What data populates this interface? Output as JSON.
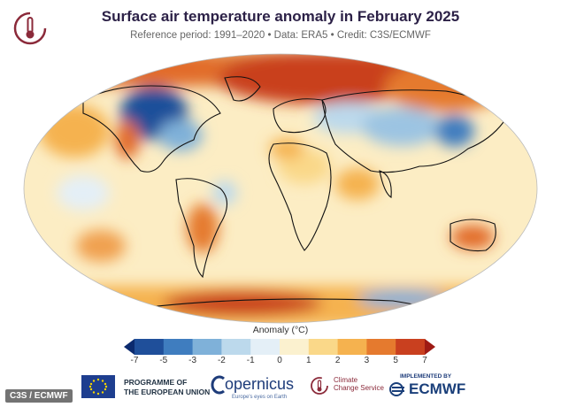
{
  "header": {
    "title": "Surface air temperature anomaly in February 2025",
    "subtitle": "Reference period: 1991–2020 • Data: ERA5 • Credit: C3S/ECMWF"
  },
  "legend": {
    "label": "Anomaly (°C)",
    "ticks": [
      "-7",
      "-5",
      "-3",
      "-2",
      "-1",
      "0",
      "1",
      "2",
      "3",
      "5",
      "7"
    ],
    "colors": [
      "#0b2a6e",
      "#1f4f9a",
      "#3f7dbf",
      "#7fb1d9",
      "#bcd9ec",
      "#e4eff7",
      "#fbf1cf",
      "#fad889",
      "#f5b24f",
      "#e57a2e",
      "#c9401f",
      "#9e1a14"
    ]
  },
  "footer": {
    "credit": "C3S / ECMWF",
    "eu_line1": "PROGRAMME OF",
    "eu_line2": "THE EUROPEAN UNION",
    "copernicus": "opernicus",
    "copernicus_tag": "Europe's eyes on Earth",
    "ccs_line1": "Climate",
    "ccs_line2": "Change Service",
    "implemented": "IMPLEMENTED BY",
    "ecmwf": "ECMWF"
  }
}
